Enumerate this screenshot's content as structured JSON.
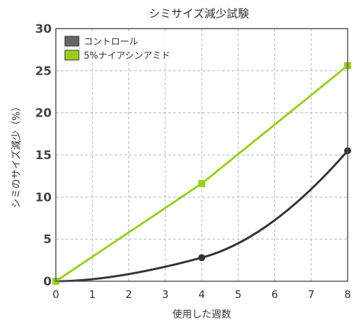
{
  "chart_data": {
    "type": "line",
    "title": "シミサイズ減少試験",
    "xlabel": "使用した週数",
    "ylabel": "シミのサイズ減少（%）",
    "x": [
      0,
      4,
      8
    ],
    "xlim": [
      0,
      8
    ],
    "ylim": [
      0,
      30
    ],
    "xticks": [
      "0",
      "1",
      "2",
      "3",
      "4",
      "5",
      "6",
      "7",
      "8"
    ],
    "yticks": [
      "0",
      "5",
      "10",
      "15",
      "20",
      "25",
      "30"
    ],
    "grid": true,
    "legend_position": "top-left",
    "series": [
      {
        "name": "コントロール",
        "values": [
          0,
          2.8,
          15.5
        ],
        "color": "#333333",
        "marker": "circle",
        "curve": "smooth"
      },
      {
        "name": "5%ナイアシンアミド",
        "values": [
          0,
          11.6,
          25.6
        ],
        "color": "#9acd22",
        "marker": "square",
        "curve": "linear"
      }
    ]
  }
}
